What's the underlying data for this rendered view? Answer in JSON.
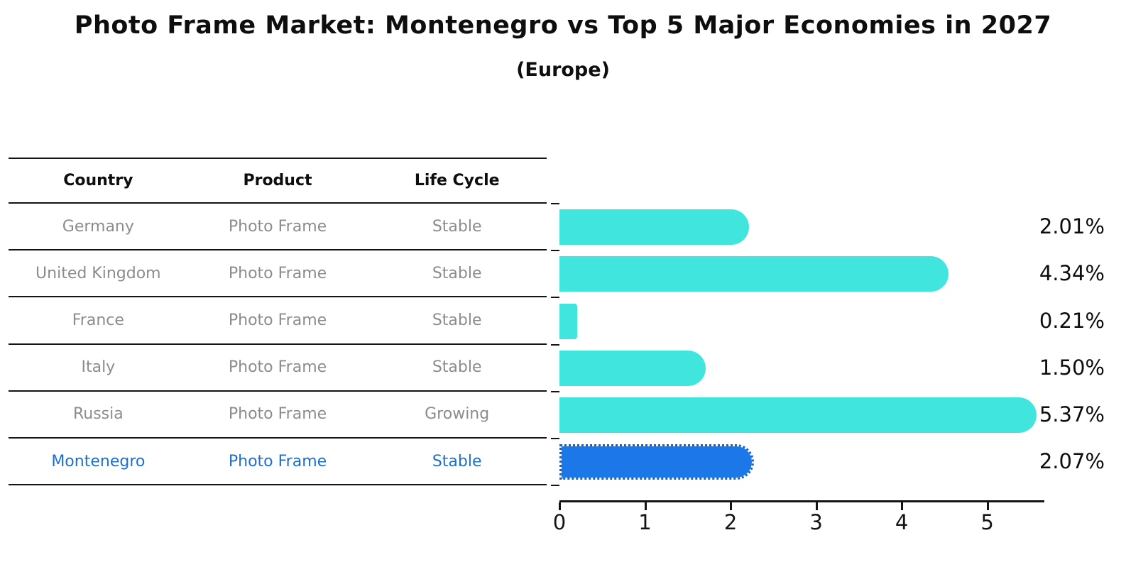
{
  "title": "Photo Frame Market: Montenegro vs Top 5 Major Economies in 2027",
  "subtitle": "(Europe)",
  "table": {
    "headers": [
      "Country",
      "Product",
      "Life Cycle"
    ],
    "rows": [
      {
        "country": "Germany",
        "product": "Photo Frame",
        "life_cycle": "Stable",
        "highlight": false
      },
      {
        "country": "United Kingdom",
        "product": "Photo Frame",
        "life_cycle": "Stable",
        "highlight": false
      },
      {
        "country": "France",
        "product": "Photo Frame",
        "life_cycle": "Stable",
        "highlight": false
      },
      {
        "country": "Italy",
        "product": "Photo Frame",
        "life_cycle": "Stable",
        "highlight": false
      },
      {
        "country": "Russia",
        "product": "Photo Frame",
        "life_cycle": "Growing",
        "highlight": false
      },
      {
        "country": "Montenegro",
        "product": "Photo Frame",
        "life_cycle": "Stable",
        "highlight": true
      }
    ]
  },
  "chart_data": {
    "type": "bar",
    "orientation": "horizontal",
    "title": "Photo Frame Market: Montenegro vs Top 5 Major Economies in 2027",
    "subtitle": "(Europe)",
    "categories": [
      "Germany",
      "United Kingdom",
      "France",
      "Italy",
      "Russia",
      "Montenegro"
    ],
    "values": [
      2.01,
      4.34,
      0.21,
      1.5,
      5.37,
      2.07
    ],
    "value_labels": [
      "2.01%",
      "4.34%",
      "0.21%",
      "1.50%",
      "5.37%",
      "2.07%"
    ],
    "x_ticks": [
      "0",
      "1",
      "2",
      "3",
      "4",
      "5"
    ],
    "xlim": [
      0,
      5.65
    ],
    "grid": false,
    "legend_position": "none",
    "highlight_index": 5
  },
  "colors": {
    "bar": "#40e5de",
    "highlight_bar": "#1c78e8",
    "highlight_border": "#0f66d0",
    "highlight_text": "#1e6fd2",
    "cell_text": "#8c8c8c",
    "line": "#141414"
  }
}
